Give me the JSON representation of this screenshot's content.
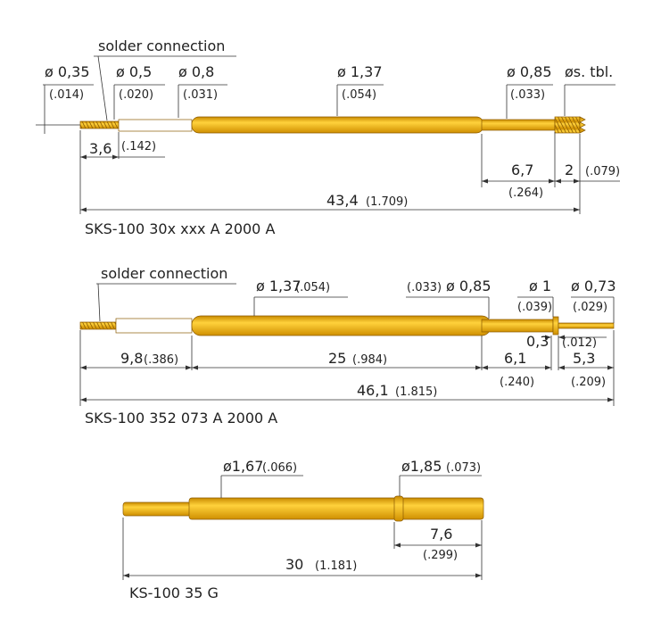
{
  "drawings": [
    {
      "caption": "SKS-100 30x xxx A 2000 A",
      "labels": [
        "solder connection",
        "ø 0,35",
        "(.014)",
        "ø 0,5",
        "(.020)",
        "ø 0,8",
        "(.031)",
        "ø 1,37",
        "(.054)",
        "ø 0,85",
        "(.033)",
        "øs. tbl.",
        "3,6",
        "(.142)",
        "6,7",
        "(.264)",
        "2",
        "(.079)",
        "43,4",
        "(1.709)"
      ]
    },
    {
      "caption": "SKS-100 352 073 A 2000 A",
      "labels": [
        "solder connection",
        "ø 1,37",
        "(.054)",
        "(.033)",
        "ø 0,85",
        "ø 1",
        "(.039)",
        "ø 0,73",
        "(.029)",
        "0,3",
        "(.012)",
        "9,8",
        "(.386)",
        "25",
        "(.984)",
        "6,1",
        "(.240)",
        "5,3",
        "(.209)",
        "46,1",
        "(1.815)"
      ]
    },
    {
      "caption": "KS-100 35 G",
      "labels": [
        "ø1,67",
        "(.066)",
        "ø1,85",
        "(.073)",
        "7,6",
        "(.299)",
        "30",
        "(1.181)"
      ]
    }
  ]
}
